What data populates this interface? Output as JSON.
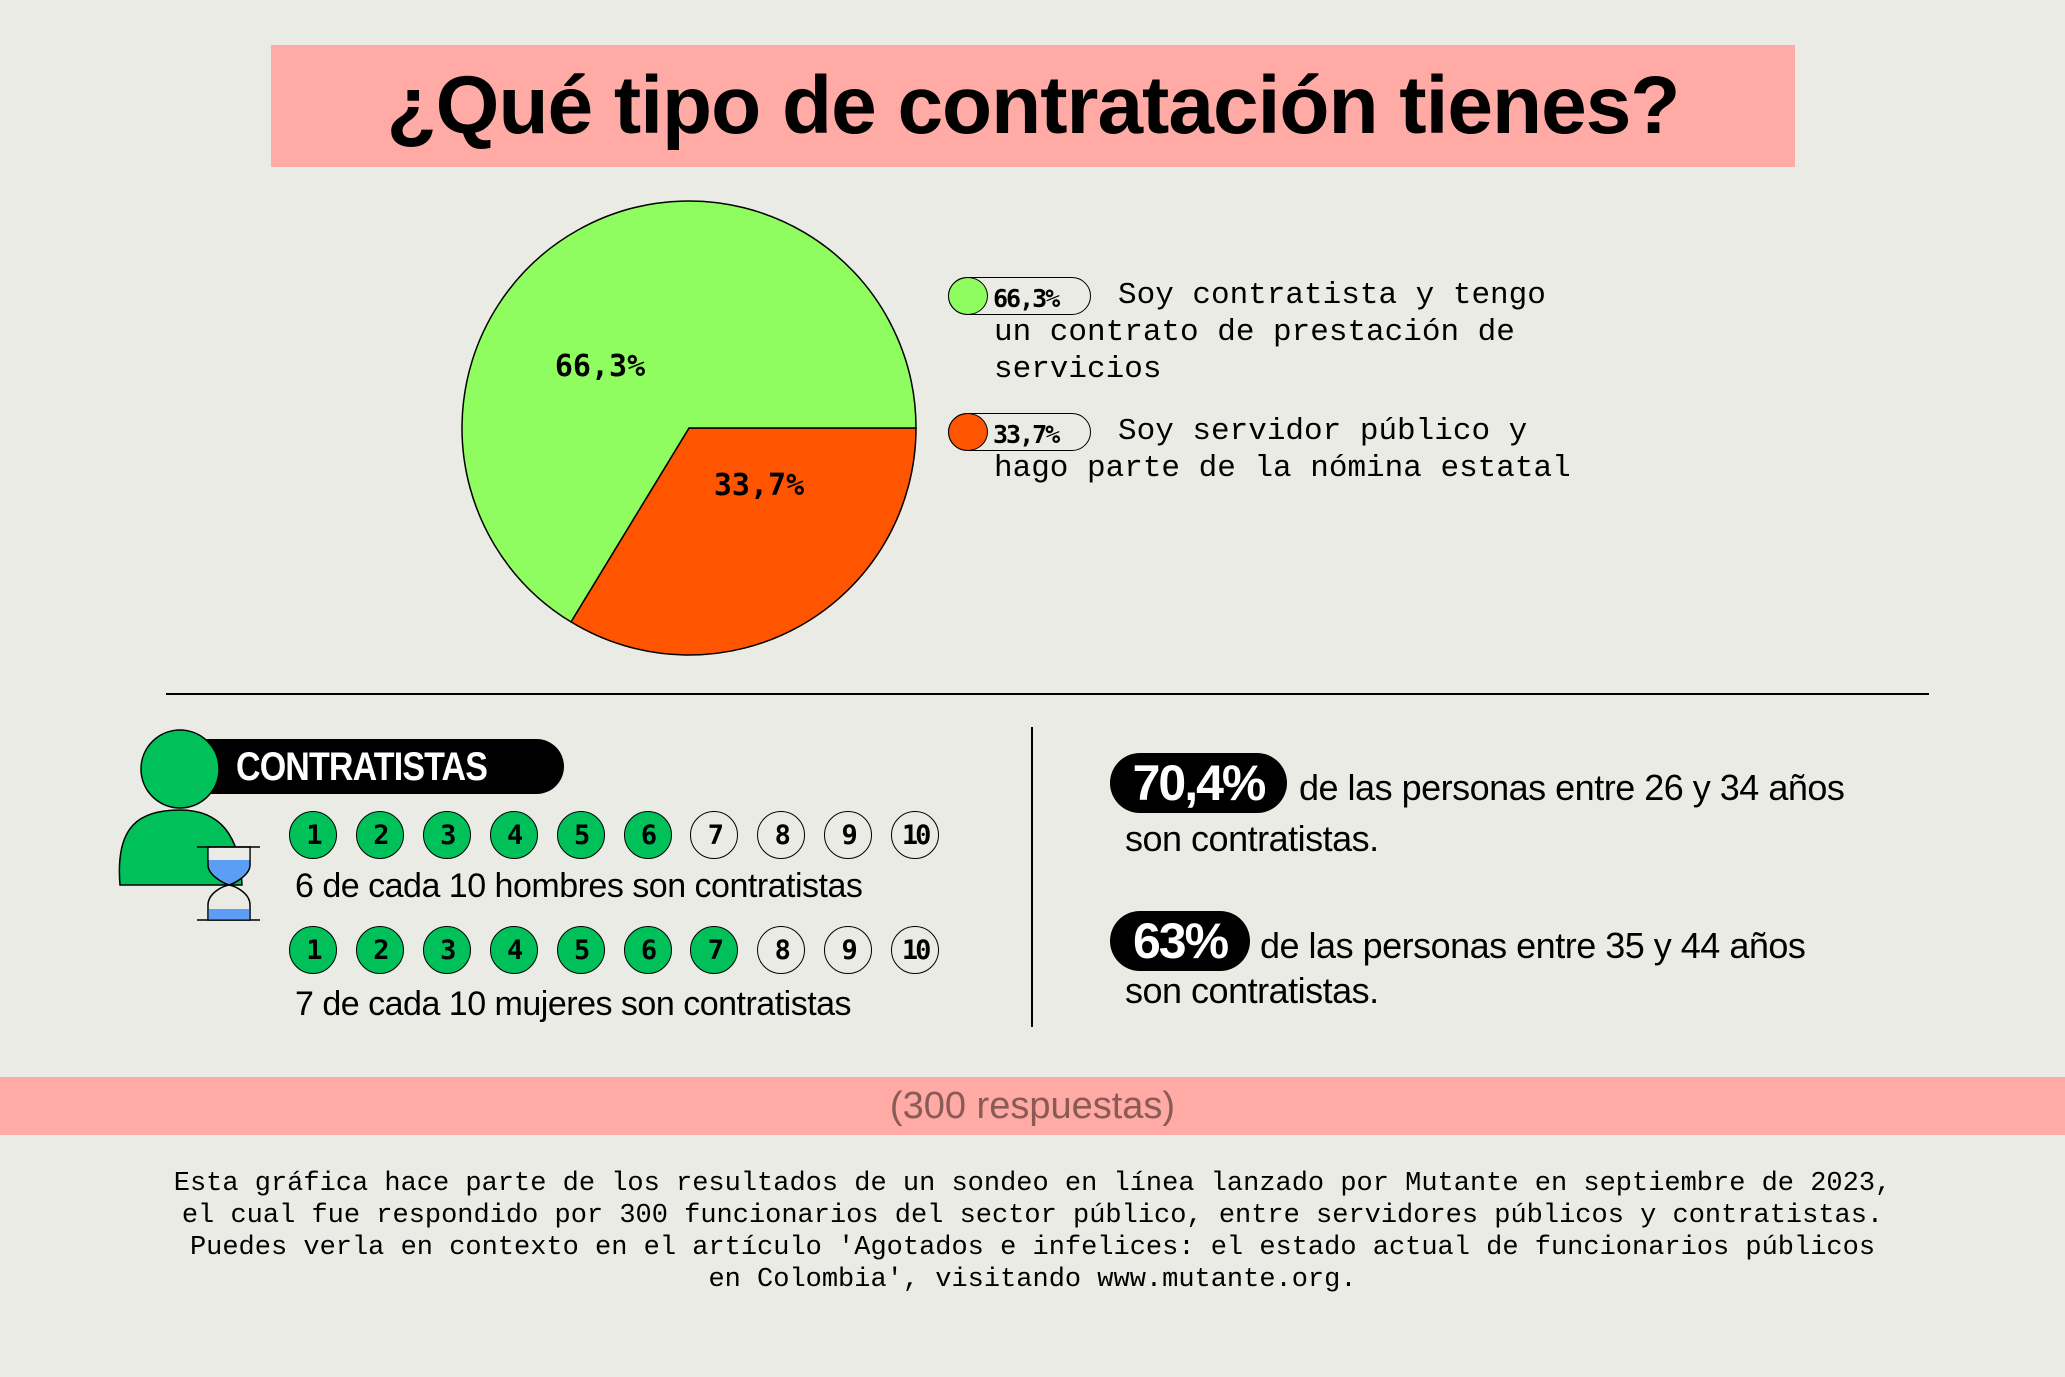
{
  "title": "¿Qué tipo de contratación tienes?",
  "colors": {
    "background": "#ebebe5",
    "pink": "#ffaaa5",
    "contratista": "#8ffd60",
    "servidor": "#ff5500",
    "icon_green": "#00c05a",
    "hourglass_blue": "#5c9ef5"
  },
  "chart_data": {
    "type": "pie",
    "title": "¿Qué tipo de contratación tienes?",
    "slices": [
      {
        "label": "Soy contratista y tengo un contrato de prestación de servicios",
        "value": 66.3,
        "display": "66,3%",
        "color": "#8ffd60"
      },
      {
        "label": "Soy servidor público y hago parte de la nómina estatal",
        "value": 33.7,
        "display": "33,7%",
        "color": "#ff5500"
      }
    ],
    "legend_placement": "right"
  },
  "legend": [
    {
      "value": "66,3%",
      "lines": [
        "Soy contratista y tengo",
        "un contrato de prestación de",
        "servicios"
      ]
    },
    {
      "value": "33,7%",
      "lines": [
        "Soy servidor público y",
        "hago parte de la nómina estatal"
      ]
    }
  ],
  "contratistas": {
    "header": "CONTRATISTAS",
    "icons": [
      "person-icon",
      "hourglass-icon"
    ],
    "rows": [
      {
        "filled": 6,
        "numbers": [
          "1",
          "2",
          "3",
          "4",
          "5",
          "6",
          "7",
          "8",
          "9",
          "10"
        ],
        "caption": "6 de cada 10 hombres son contratistas"
      },
      {
        "filled": 7,
        "numbers": [
          "1",
          "2",
          "3",
          "4",
          "5",
          "6",
          "7",
          "8",
          "9",
          "10"
        ],
        "caption": "7 de cada 10 mujeres son contratistas"
      }
    ]
  },
  "age_stats": [
    {
      "value": "70,4%",
      "line1": "de las personas entre 26 y 34 años",
      "line2": "son contratistas."
    },
    {
      "value": "63%",
      "line1": "de las personas entre 35 y 44 años",
      "line2": "son contratistas."
    }
  ],
  "responses": "(300 respuestas)",
  "footer": [
    "Esta gráfica hace parte de los resultados de un sondeo en línea lanzado por Mutante en septiembre de 2023,",
    "el cual fue respondido por 300 funcionarios del sector público, entre servidores públicos y contratistas.",
    "Puedes verla en contexto en el artículo 'Agotados e infelices: el estado actual de funcionarios públicos",
    "en Colombia', visitando www.mutante.org."
  ]
}
